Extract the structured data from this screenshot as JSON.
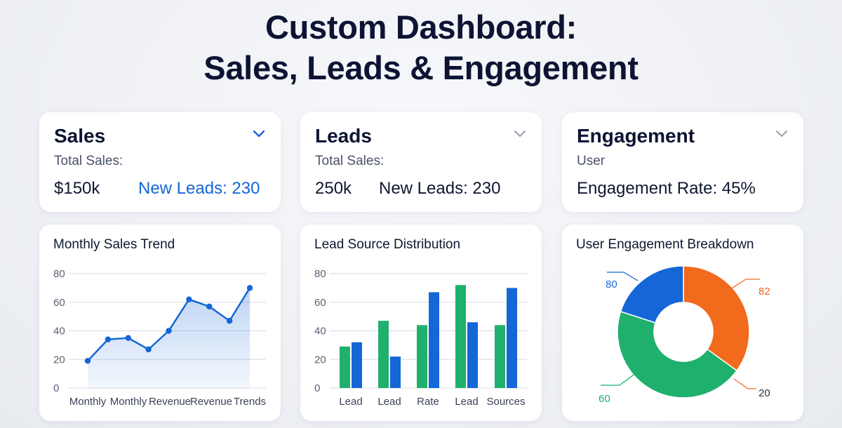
{
  "header": {
    "title_line1": "Custom Dashboard:",
    "title_line2": "Sales, Leads & Engagement"
  },
  "colors": {
    "accent_blue": "#1566d6",
    "green": "#1fb06e",
    "orange": "#f26a1b",
    "chevron_active": "#1566d6",
    "chevron_inactive": "#9aa1ad"
  },
  "kpis": {
    "sales": {
      "title": "Sales",
      "chevron_icon": "chevron-down-icon",
      "subtitle": "Total Sales:",
      "value": "$150k",
      "secondary": "New Leads: 230"
    },
    "leads": {
      "title": "Leads",
      "chevron_icon": "chevron-down-icon",
      "subtitle": "Total Sales:",
      "value": "250k",
      "secondary": "New Leads: 230"
    },
    "engagement": {
      "title": "Engagement",
      "chevron_icon": "chevron-down-icon",
      "subtitle": "User",
      "value": "Engagement Rate: 45%"
    }
  },
  "charts": {
    "sales_trend_title": "Monthly Sales Trend",
    "lead_source_title": "Lead Source Distribution",
    "engagement_title": "User Engagement Breakdown"
  },
  "chart_data": [
    {
      "type": "area",
      "title": "Monthly Sales Trend",
      "ylim": [
        0,
        80
      ],
      "yticks": [
        "0",
        "20",
        "40",
        "60",
        "80"
      ],
      "xtick_labels": [
        "Monthly",
        "Monthly",
        "Revenue",
        "Revenue",
        "Trends"
      ],
      "values": [
        19,
        34,
        35,
        27,
        40,
        62,
        57,
        47,
        70
      ],
      "grid": true
    },
    {
      "type": "bar",
      "title": "Lead Source Distribution",
      "ylim": [
        0,
        80
      ],
      "yticks": [
        "0",
        "20",
        "40",
        "60",
        "80"
      ],
      "categories": [
        "Lead",
        "Lead",
        "Rate",
        "Lead",
        "Sources"
      ],
      "series": [
        {
          "color": "#1fb06e",
          "values": [
            29,
            47,
            44,
            72,
            44
          ]
        },
        {
          "color": "#1566d6",
          "values": [
            32,
            22,
            67,
            46,
            70
          ]
        }
      ],
      "grid": true
    },
    {
      "type": "pie",
      "title": "User Engagement Breakdown",
      "donut": true,
      "slices": [
        {
          "label": "82",
          "value": 35,
          "color": "#f26a1b"
        },
        {
          "label": "20",
          "value": 0,
          "color": "#f26a1b"
        },
        {
          "label": "60",
          "value": 45,
          "color": "#1fb06e"
        },
        {
          "label": "80",
          "value": 20,
          "color": "#1566d6"
        }
      ]
    }
  ]
}
